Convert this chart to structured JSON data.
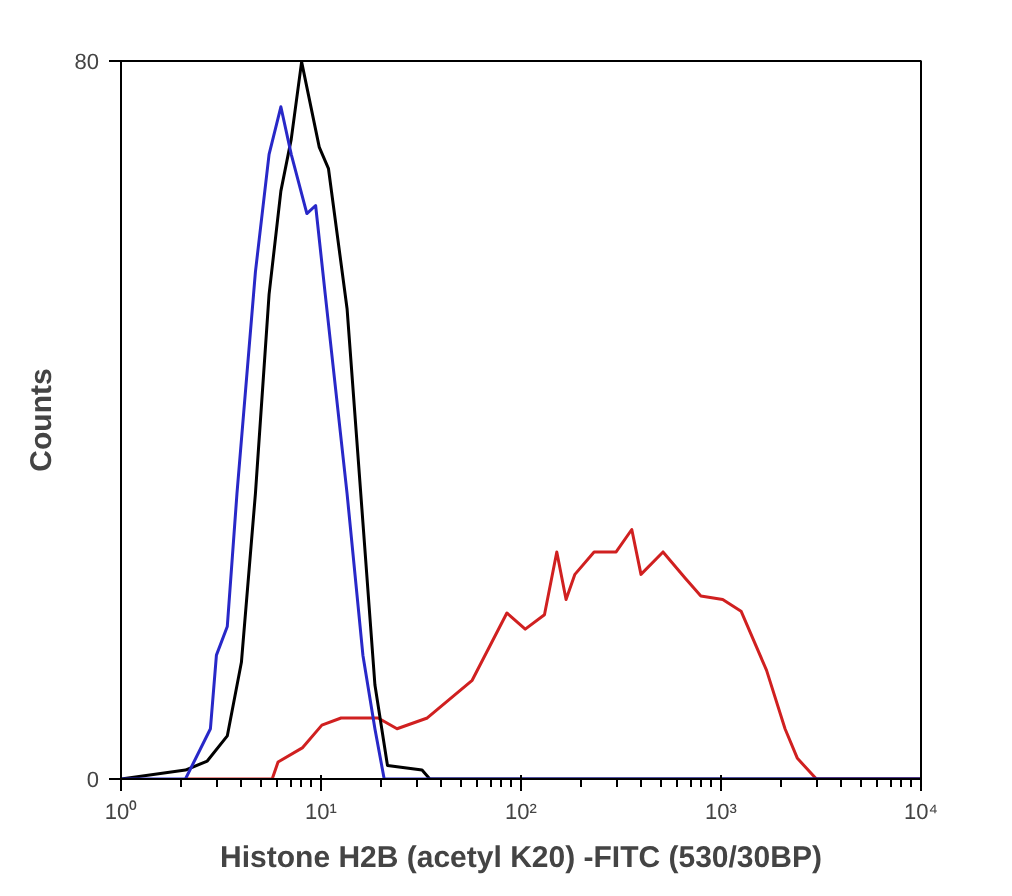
{
  "chart_data": {
    "type": "line",
    "xlabel": "Histone H2B (acetyl K20) -FITC (530/30BP)",
    "ylabel": "Counts",
    "log": "x",
    "grid": false,
    "marker": "none",
    "line_style": "solid",
    "xlim": [
      1,
      10000
    ],
    "ylim": [
      0,
      80
    ],
    "xticks": [
      {
        "value": 1,
        "label": "10⁰"
      },
      {
        "value": 10,
        "label": "10¹"
      },
      {
        "value": 100,
        "label": "10²"
      },
      {
        "value": 1000,
        "label": "10³"
      },
      {
        "value": 10000,
        "label": "10⁴"
      }
    ],
    "yticks": [
      0,
      80
    ],
    "series": [
      {
        "color": "#d02020",
        "x": [
          2.1,
          5.7,
          6.1,
          8.1,
          10.1,
          12.6,
          19.3,
          24,
          34,
          57,
          85,
          105,
          131,
          151,
          168,
          186,
          232,
          299,
          358,
          398,
          513,
          661,
          793,
          1020,
          1260,
          1690,
          2090,
          2410,
          3000,
          10000
        ],
        "values": [
          0,
          0,
          1.9,
          3.5,
          6,
          6.8,
          6.8,
          5.6,
          6.8,
          11,
          18.5,
          16.7,
          18.3,
          25.3,
          20,
          22.8,
          25.3,
          25.3,
          27.8,
          22.8,
          25.3,
          22.4,
          20.4,
          20,
          18.7,
          12.1,
          5.6,
          2.3,
          0,
          0
        ]
      },
      {
        "color": "#000000",
        "x": [
          1,
          2.1,
          2.7,
          3.4,
          4,
          4.7,
          5.5,
          6.3,
          7.1,
          8,
          9.8,
          10.9,
          13.5,
          16.2,
          18.6,
          21.5,
          32,
          35,
          10000
        ],
        "values": [
          0,
          1,
          2,
          4.8,
          13,
          31.8,
          54,
          65.5,
          71.3,
          79.9,
          70.4,
          68,
          52.4,
          28.6,
          10.5,
          1.5,
          1,
          0,
          0
        ]
      },
      {
        "color": "#2828c8",
        "x": [
          1,
          2.1,
          2.8,
          3,
          3.4,
          3.8,
          4.7,
          5.5,
          6.3,
          7.1,
          8.5,
          9.4,
          10.5,
          13.5,
          16.2,
          18.6,
          20.7,
          10000
        ],
        "values": [
          0,
          0,
          5.6,
          13.8,
          17,
          31.8,
          56.5,
          69.6,
          74.9,
          69.6,
          63,
          63.9,
          54,
          31.8,
          13.8,
          5.6,
          0,
          0
        ]
      }
    ]
  }
}
